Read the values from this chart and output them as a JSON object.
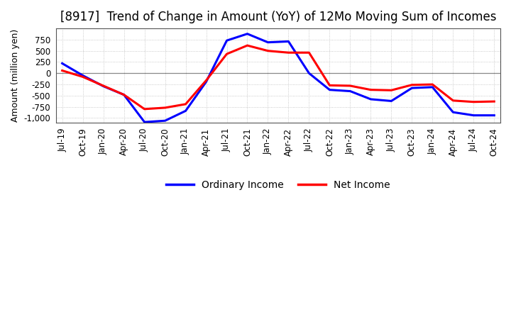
{
  "title": "[8917]  Trend of Change in Amount (YoY) of 12Mo Moving Sum of Incomes",
  "ylabel": "Amount (million yen)",
  "x_labels": [
    "Jul-19",
    "Oct-19",
    "Jan-20",
    "Apr-20",
    "Jul-20",
    "Oct-20",
    "Jan-21",
    "Apr-21",
    "Jul-21",
    "Oct-21",
    "Jan-22",
    "Apr-22",
    "Jul-22",
    "Oct-22",
    "Jan-23",
    "Apr-23",
    "Jul-23",
    "Oct-23",
    "Jan-24",
    "Apr-24",
    "Jul-24",
    "Oct-24"
  ],
  "ordinary_income": [
    220,
    -50,
    -290,
    -480,
    -1090,
    -1060,
    -840,
    -190,
    730,
    880,
    690,
    710,
    0,
    -370,
    -400,
    -580,
    -620,
    -330,
    -310,
    -870,
    -940,
    -940
  ],
  "net_income": [
    60,
    -80,
    -280,
    -480,
    -800,
    -770,
    -690,
    -160,
    430,
    620,
    500,
    460,
    460,
    -270,
    -280,
    -370,
    -380,
    -260,
    -250,
    -610,
    -640,
    -630
  ],
  "ordinary_income_color": "#0000FF",
  "net_income_color": "#FF0000",
  "ylim": [
    -1100,
    1000
  ],
  "yticks": [
    -1000,
    -750,
    -500,
    -250,
    0,
    250,
    500,
    750
  ],
  "background_color": "#FFFFFF",
  "plot_bg_color": "#FFFFFF",
  "grid_color": "#BBBBBB",
  "linewidth": 2.2,
  "title_fontsize": 12,
  "legend_fontsize": 10,
  "tick_fontsize": 8.5,
  "ylabel_fontsize": 9
}
